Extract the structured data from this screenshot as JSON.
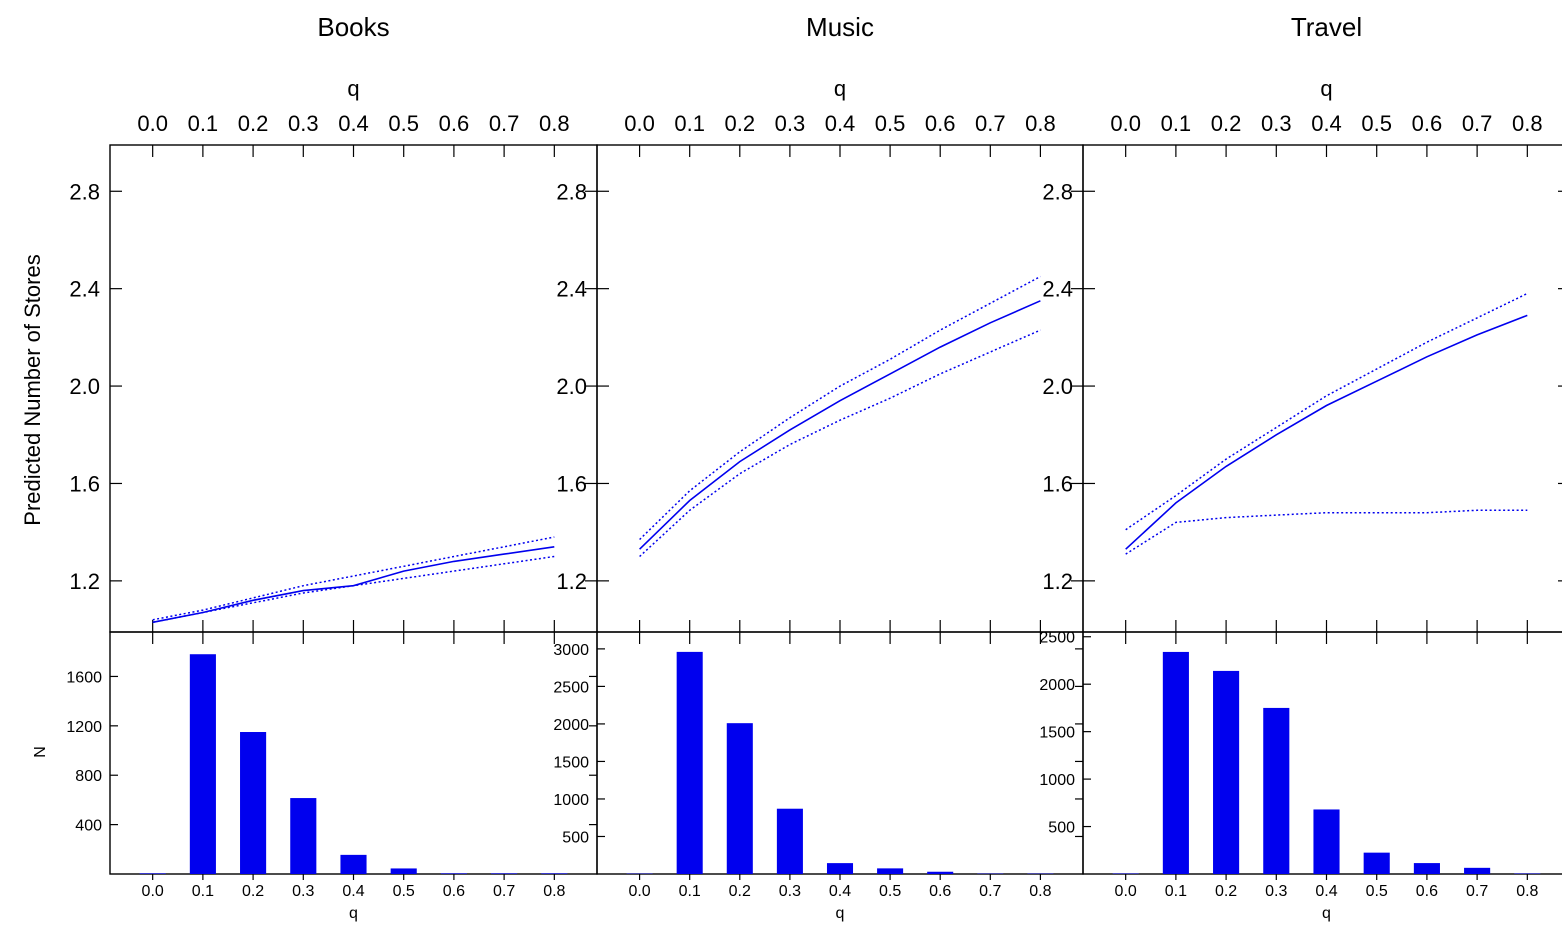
{
  "figure": {
    "y_axis_label_top": "Predicted Number of Stores",
    "y_axis_label_bottom": "N",
    "x_axis_label": "q"
  },
  "colors": {
    "series": "#0000EE",
    "axes": "#000000",
    "background": "#FFFFFF"
  },
  "chart_data": [
    {
      "panel": "Books",
      "title": "Books",
      "type": "line",
      "xlabel": "q",
      "ylabel": "Predicted Number of Stores",
      "x_ticks": [
        "0.0",
        "0.1",
        "0.2",
        "0.3",
        "0.4",
        "0.5",
        "0.6",
        "0.7",
        "0.8"
      ],
      "y_ticks": [
        "1.2",
        "1.6",
        "2.0",
        "2.4",
        "2.8"
      ],
      "xlim": [
        -0.085,
        0.885
      ],
      "ylim": [
        0.99,
        2.99
      ],
      "grid": false,
      "legend": "none",
      "x": [
        0.0,
        0.1,
        0.2,
        0.3,
        0.4,
        0.5,
        0.6,
        0.7,
        0.8
      ],
      "series": [
        {
          "style": "solid",
          "values": [
            1.03,
            1.07,
            1.12,
            1.16,
            1.18,
            1.24,
            1.28,
            1.31,
            1.34
          ]
        },
        {
          "style": "dotted",
          "values": [
            1.04,
            1.08,
            1.13,
            1.18,
            1.22,
            1.26,
            1.3,
            1.34,
            1.38
          ]
        },
        {
          "style": "dotted",
          "values": [
            1.03,
            1.07,
            1.11,
            1.15,
            1.18,
            1.21,
            1.24,
            1.27,
            1.3
          ]
        }
      ]
    },
    {
      "panel": "Music",
      "title": "Music",
      "type": "line",
      "xlabel": "q",
      "ylabel": "",
      "x_ticks": [
        "0.0",
        "0.1",
        "0.2",
        "0.3",
        "0.4",
        "0.5",
        "0.6",
        "0.7",
        "0.8"
      ],
      "y_ticks": [
        "1.2",
        "1.6",
        "2.0",
        "2.4",
        "2.8"
      ],
      "xlim": [
        -0.085,
        0.885
      ],
      "ylim": [
        0.99,
        2.99
      ],
      "grid": false,
      "legend": "none",
      "x": [
        0.0,
        0.1,
        0.2,
        0.3,
        0.4,
        0.5,
        0.6,
        0.7,
        0.8
      ],
      "series": [
        {
          "style": "solid",
          "values": [
            1.33,
            1.53,
            1.69,
            1.82,
            1.94,
            2.05,
            2.16,
            2.26,
            2.35
          ]
        },
        {
          "style": "dotted",
          "values": [
            1.37,
            1.57,
            1.73,
            1.87,
            2.0,
            2.11,
            2.23,
            2.34,
            2.45
          ]
        },
        {
          "style": "dotted",
          "values": [
            1.3,
            1.49,
            1.64,
            1.76,
            1.86,
            1.95,
            2.05,
            2.14,
            2.23
          ]
        }
      ]
    },
    {
      "panel": "Travel",
      "title": "Travel",
      "type": "line",
      "xlabel": "q",
      "ylabel": "",
      "x_ticks": [
        "0.0",
        "0.1",
        "0.2",
        "0.3",
        "0.4",
        "0.5",
        "0.6",
        "0.7",
        "0.8"
      ],
      "y_ticks": [
        "1.2",
        "1.6",
        "2.0",
        "2.4",
        "2.8"
      ],
      "xlim": [
        -0.085,
        0.885
      ],
      "ylim": [
        0.99,
        2.99
      ],
      "grid": false,
      "legend": "none",
      "x": [
        0.0,
        0.1,
        0.2,
        0.3,
        0.4,
        0.5,
        0.6,
        0.7,
        0.8
      ],
      "series": [
        {
          "style": "solid",
          "values": [
            1.33,
            1.52,
            1.67,
            1.8,
            1.92,
            2.02,
            2.12,
            2.21,
            2.29
          ]
        },
        {
          "style": "dotted",
          "values": [
            1.41,
            1.55,
            1.7,
            1.83,
            1.96,
            2.07,
            2.18,
            2.28,
            2.38
          ]
        },
        {
          "style": "dotted",
          "values": [
            1.31,
            1.44,
            1.46,
            1.47,
            1.48,
            1.48,
            1.48,
            1.49,
            1.49
          ]
        }
      ]
    },
    {
      "panel": "Books",
      "type": "bar",
      "xlabel": "q",
      "ylabel": "N",
      "categories": [
        "0.0",
        "0.1",
        "0.2",
        "0.3",
        "0.4",
        "0.5",
        "0.6",
        "0.7",
        "0.8"
      ],
      "values": [
        5,
        1780,
        1150,
        615,
        155,
        45,
        5,
        5,
        5
      ],
      "y_ticks": [
        "400",
        "800",
        "1200",
        "1600"
      ],
      "tick_values": [
        400,
        800,
        1200,
        1600
      ],
      "ylim": [
        0,
        1960
      ],
      "grid": false,
      "legend": "none"
    },
    {
      "panel": "Music",
      "type": "bar",
      "xlabel": "q",
      "ylabel": "",
      "categories": [
        "0.0",
        "0.1",
        "0.2",
        "0.3",
        "0.4",
        "0.5",
        "0.6",
        "0.7",
        "0.8"
      ],
      "values": [
        5,
        2960,
        2010,
        870,
        145,
        75,
        30,
        5,
        5
      ],
      "y_ticks": [
        "500",
        "1000",
        "1500",
        "2000",
        "2500",
        "3000"
      ],
      "tick_values": [
        500,
        1000,
        1500,
        2000,
        2500,
        3000
      ],
      "ylim": [
        0,
        3225
      ],
      "grid": false,
      "legend": "none"
    },
    {
      "panel": "Travel",
      "type": "bar",
      "xlabel": "q",
      "ylabel": "",
      "categories": [
        "0.0",
        "0.1",
        "0.2",
        "0.3",
        "0.4",
        "0.5",
        "0.6",
        "0.7",
        "0.8"
      ],
      "values": [
        5,
        2340,
        2140,
        1750,
        680,
        225,
        115,
        65,
        5
      ],
      "y_ticks": [
        "500",
        "1000",
        "1500",
        "2000",
        "2500"
      ],
      "tick_values": [
        500,
        1000,
        1500,
        2000,
        2500
      ],
      "ylim": [
        0,
        2550
      ],
      "grid": false,
      "legend": "none"
    }
  ]
}
